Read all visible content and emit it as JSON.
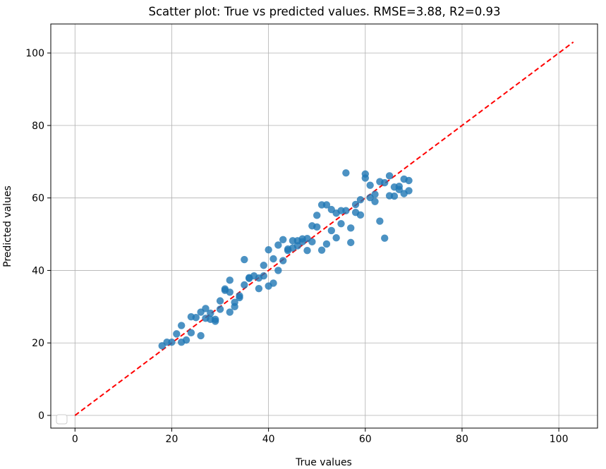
{
  "chart_data": {
    "type": "scatter",
    "title": "Scatter plot: True vs predicted values. RMSE=3.88, R2=0.93",
    "xlabel": "True values",
    "ylabel": "Predicted values",
    "xlim": [
      -5,
      108
    ],
    "ylim": [
      -3.5,
      108
    ],
    "xticks": [
      0,
      20,
      40,
      60,
      80,
      100
    ],
    "yticks": [
      0,
      20,
      40,
      60,
      80,
      100
    ],
    "grid": true,
    "point_color": "#1f77b4",
    "reference_line": {
      "from": [
        0,
        0
      ],
      "to": [
        103,
        103
      ],
      "color": "#ff0000",
      "style": "dashed"
    },
    "legend": {
      "placement": "lower-left",
      "entries": []
    },
    "points": [
      [
        18,
        19.2
      ],
      [
        19,
        20.2
      ],
      [
        20,
        20.2
      ],
      [
        21,
        22.5
      ],
      [
        22,
        24.8
      ],
      [
        22,
        20.2
      ],
      [
        23,
        20.8
      ],
      [
        24,
        22.8
      ],
      [
        24,
        27.2
      ],
      [
        25,
        27.0
      ],
      [
        26,
        28.5
      ],
      [
        26,
        22.0
      ],
      [
        27,
        26.8
      ],
      [
        27,
        29.5
      ],
      [
        28,
        28.2
      ],
      [
        28,
        26.5
      ],
      [
        29,
        26.0
      ],
      [
        29,
        26.5
      ],
      [
        30,
        29.3
      ],
      [
        30,
        31.6
      ],
      [
        31,
        34.9
      ],
      [
        31,
        34.5
      ],
      [
        32,
        37.3
      ],
      [
        32,
        34.0
      ],
      [
        32,
        28.5
      ],
      [
        33,
        30.0
      ],
      [
        33,
        31.2
      ],
      [
        34,
        33.0
      ],
      [
        34,
        32.5
      ],
      [
        35,
        43.0
      ],
      [
        35,
        36.0
      ],
      [
        36,
        37.8
      ],
      [
        36,
        38.0
      ],
      [
        37,
        38.5
      ],
      [
        38,
        37.9
      ],
      [
        38,
        35.0
      ],
      [
        39,
        41.4
      ],
      [
        39,
        38.5
      ],
      [
        40,
        45.7
      ],
      [
        40,
        35.7
      ],
      [
        41,
        43.2
      ],
      [
        41,
        36.5
      ],
      [
        42,
        40.0
      ],
      [
        42,
        47.0
      ],
      [
        43,
        48.5
      ],
      [
        43,
        42.7
      ],
      [
        44,
        45.5
      ],
      [
        44,
        45.9
      ],
      [
        45,
        48.2
      ],
      [
        45,
        46.2
      ],
      [
        46,
        46.8
      ],
      [
        46,
        48.2
      ],
      [
        47,
        48.7
      ],
      [
        47,
        47.9
      ],
      [
        48,
        48.8
      ],
      [
        48,
        45.5
      ],
      [
        49,
        47.9
      ],
      [
        49,
        52.3
      ],
      [
        50,
        52.0
      ],
      [
        50,
        55.2
      ],
      [
        51,
        58.1
      ],
      [
        51,
        45.6
      ],
      [
        52,
        58.1
      ],
      [
        52,
        47.3
      ],
      [
        53,
        56.8
      ],
      [
        53,
        51.0
      ],
      [
        54,
        49.0
      ],
      [
        54,
        55.8
      ],
      [
        55,
        52.9
      ],
      [
        55,
        56.5
      ],
      [
        56,
        66.9
      ],
      [
        56,
        56.5
      ],
      [
        57,
        51.7
      ],
      [
        57,
        47.7
      ],
      [
        58,
        58.2
      ],
      [
        58,
        56.0
      ],
      [
        59,
        59.5
      ],
      [
        59,
        55.3
      ],
      [
        60,
        66.6
      ],
      [
        60,
        65.5
      ],
      [
        61,
        63.5
      ],
      [
        61,
        60.1
      ],
      [
        62,
        61.0
      ],
      [
        62,
        59.0
      ],
      [
        63,
        53.6
      ],
      [
        63,
        64.5
      ],
      [
        64,
        64.2
      ],
      [
        64,
        48.9
      ],
      [
        65,
        66.1
      ],
      [
        65,
        60.6
      ],
      [
        66,
        60.5
      ],
      [
        66,
        63.0
      ],
      [
        67,
        63.2
      ],
      [
        67,
        62.3
      ],
      [
        68,
        61.2
      ],
      [
        68,
        65.2
      ],
      [
        69,
        64.8
      ],
      [
        69,
        62.0
      ]
    ]
  }
}
